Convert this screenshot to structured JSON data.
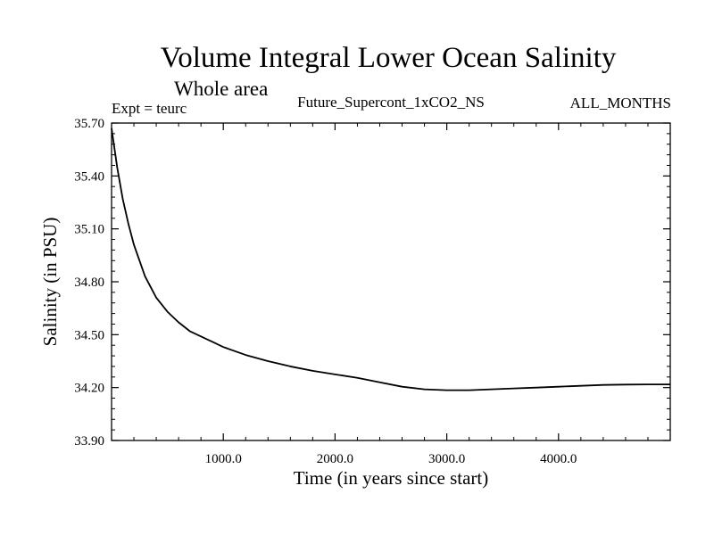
{
  "chart_data": {
    "type": "line",
    "title": "Volume Integral Lower Ocean Salinity",
    "subtitle": "Whole area",
    "left_label": "Expt = teurc",
    "center_label": "Future_Supercont_1xCO2_NS",
    "right_label": "ALL_MONTHS",
    "xlabel": "Time (in years since start)",
    "ylabel": "Salinity (in PSU)",
    "xlim": [
      0,
      5000
    ],
    "ylim": [
      33.9,
      35.7
    ],
    "xticks": [
      1000,
      2000,
      3000,
      4000
    ],
    "xtick_labels": [
      "1000.0",
      "2000.0",
      "3000.0",
      "4000.0"
    ],
    "yticks": [
      33.9,
      34.2,
      34.5,
      34.8,
      35.1,
      35.4,
      35.7
    ],
    "ytick_labels": [
      "33.90",
      "34.20",
      "34.50",
      "34.80",
      "35.10",
      "35.40",
      "35.70"
    ],
    "grid": false,
    "series": [
      {
        "color": "#000000",
        "x": [
          0,
          50,
          100,
          150,
          200,
          300,
          400,
          500,
          600,
          700,
          800,
          900,
          1000,
          1200,
          1400,
          1600,
          1800,
          2000,
          2200,
          2400,
          2600,
          2800,
          3000,
          3200,
          3400,
          3600,
          3800,
          4000,
          4200,
          4400,
          4600,
          4800,
          5000
        ],
        "y": [
          35.67,
          35.45,
          35.27,
          35.13,
          35.01,
          34.83,
          34.71,
          34.63,
          34.57,
          34.52,
          34.49,
          34.46,
          34.43,
          34.385,
          34.35,
          34.32,
          34.295,
          34.275,
          34.255,
          34.23,
          34.205,
          34.19,
          34.185,
          34.185,
          34.19,
          34.195,
          34.2,
          34.205,
          34.21,
          34.215,
          34.217,
          34.218,
          34.218
        ]
      }
    ]
  }
}
